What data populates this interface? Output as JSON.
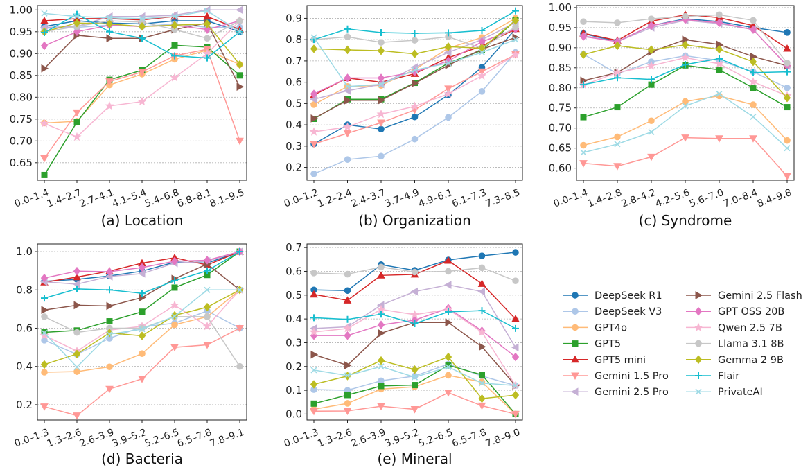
{
  "colors": {
    "DeepSeek R1": "#1f77b4",
    "DeepSeek V3": "#aec7e8",
    "GPT4o": "#ffbb78",
    "GPT5": "#2ca02c",
    "GPT5 mini": "#d62728",
    "Gemini 1.5 Pro": "#ff9896",
    "Gemini 2.5 Pro": "#c5b0d5",
    "Gemini 2.5 Flash": "#8c564b",
    "GPT OSS 20B": "#e377c2",
    "Qwen 2.5 7B": "#f7b6d2",
    "Llama 3.1 8B": "#c7c7c7",
    "Gemma 2 9B": "#bcbd22",
    "Flair": "#17becf",
    "PrivateAI": "#9edae5"
  },
  "markers": {
    "DeepSeek R1": "circle",
    "DeepSeek V3": "circle",
    "GPT4o": "circle",
    "GPT5": "square",
    "GPT5 mini": "triangle-up",
    "Gemini 1.5 Pro": "triangle-down",
    "Gemini 2.5 Pro": "triangle-left",
    "Gemini 2.5 Flash": "triangle-right",
    "GPT OSS 20B": "diamond",
    "Qwen 2.5 7B": "star",
    "Llama 3.1 8B": "circle",
    "Gemma 2 9B": "diamond",
    "Flair": "plus",
    "PrivateAI": "x"
  },
  "legend": {
    "column1": [
      "DeepSeek R1",
      "DeepSeek V3",
      "GPT4o",
      "GPT5",
      "GPT5 mini",
      "Gemini 1.5 Pro",
      "Gemini 2.5 Pro"
    ],
    "column2": [
      "Gemini 2.5 Flash",
      "GPT OSS 20B",
      "Qwen 2.5 7B",
      "Llama 3.1 8B",
      "Gemma 2 9B",
      "Flair",
      "PrivateAI"
    ]
  },
  "chart_data": [
    {
      "type": "line",
      "caption": "(a) Location",
      "categories": [
        "0.0–1.4",
        "1.4–2.7",
        "2.7–4.1",
        "4.1–5.4",
        "5.4–6.8",
        "6.8–8.1",
        "8.1–9.5"
      ],
      "yticks": [
        "0.65",
        "0.70",
        "0.75",
        "0.80",
        "0.85",
        "0.90",
        "0.95",
        "1.00"
      ],
      "ylim": [
        0.61,
        1.01
      ],
      "grid": "horizontal dotted",
      "series": [
        {
          "name": "DeepSeek R1",
          "values": [
            0.962,
            0.975,
            0.97,
            0.968,
            0.975,
            0.975,
            0.95
          ]
        },
        {
          "name": "DeepSeek V3",
          "values": [
            0.958,
            0.96,
            0.965,
            0.962,
            0.968,
            0.96,
            0.96
          ]
        },
        {
          "name": "GPT4o",
          "values": [
            0.741,
            0.745,
            0.828,
            0.853,
            0.887,
            0.908,
            0.875
          ]
        },
        {
          "name": "GPT5",
          "values": [
            0.622,
            0.743,
            0.84,
            0.862,
            0.919,
            0.915,
            0.85
          ]
        },
        {
          "name": "GPT5 mini",
          "values": [
            0.975,
            0.98,
            0.98,
            0.977,
            0.985,
            0.985,
            0.955
          ]
        },
        {
          "name": "Gemini 1.5 Pro",
          "values": [
            0.66,
            0.765,
            0.836,
            0.858,
            0.895,
            0.91,
            0.7
          ]
        },
        {
          "name": "Gemini 2.5 Pro",
          "values": [
            0.96,
            0.962,
            0.985,
            0.985,
            0.988,
            1.0,
            1.0
          ]
        },
        {
          "name": "Gemini 2.5 Flash",
          "values": [
            0.866,
            0.942,
            0.935,
            0.935,
            0.955,
            0.97,
            0.824
          ]
        },
        {
          "name": "GPT OSS 20B",
          "values": [
            0.918,
            0.95,
            0.965,
            0.962,
            0.965,
            0.955,
            0.975
          ]
        },
        {
          "name": "Qwen 2.5 7B",
          "values": [
            0.74,
            0.709,
            0.78,
            0.79,
            0.845,
            0.9,
            0.975
          ]
        },
        {
          "name": "Llama 3.1 8B",
          "values": [
            0.95,
            0.962,
            0.975,
            0.972,
            0.955,
            0.935,
            0.975
          ]
        },
        {
          "name": "Gemma 2 9B",
          "values": [
            0.95,
            0.97,
            0.968,
            0.962,
            0.965,
            0.968,
            0.875
          ]
        },
        {
          "name": "Flair",
          "values": [
            0.948,
            0.99,
            0.95,
            0.935,
            0.895,
            0.89,
            0.95
          ]
        },
        {
          "name": "PrivateAI",
          "values": [
            0.992,
            0.985,
            0.982,
            0.98,
            0.985,
            0.998,
            0.95
          ]
        }
      ]
    },
    {
      "type": "line",
      "caption": "(b) Organization",
      "categories": [
        "0.0–1.2",
        "1.2–2.4",
        "2.4–3.7",
        "3.7–4.9",
        "4.9–6.1",
        "6.1–7.3",
        "7.3–8.5"
      ],
      "yticks": [
        "0.2",
        "0.3",
        "0.4",
        "0.5",
        "0.6",
        "0.7",
        "0.8",
        "0.9"
      ],
      "ylim": [
        0.14,
        0.96
      ],
      "grid": "horizontal dotted",
      "series": [
        {
          "name": "DeepSeek R1",
          "values": [
            0.31,
            0.4,
            0.38,
            0.437,
            0.54,
            0.67,
            0.85
          ]
        },
        {
          "name": "DeepSeek V3",
          "values": [
            0.17,
            0.237,
            0.253,
            0.333,
            0.435,
            0.557,
            0.74
          ]
        },
        {
          "name": "GPT4o",
          "values": [
            0.495,
            0.58,
            0.585,
            0.66,
            0.76,
            0.81,
            0.9
          ]
        },
        {
          "name": "GPT5",
          "values": [
            0.428,
            0.52,
            0.52,
            0.597,
            0.69,
            0.75,
            0.89
          ]
        },
        {
          "name": "GPT5 mini",
          "values": [
            0.54,
            0.62,
            0.6,
            0.64,
            0.715,
            0.77,
            0.85
          ]
        },
        {
          "name": "Gemini 1.5 Pro",
          "values": [
            0.31,
            0.36,
            0.41,
            0.47,
            0.57,
            0.65,
            0.73
          ]
        },
        {
          "name": "Gemini 2.5 Pro",
          "values": [
            0.52,
            0.56,
            0.59,
            0.67,
            0.74,
            0.8,
            0.88
          ]
        },
        {
          "name": "Gemini 2.5 Flash",
          "values": [
            0.43,
            0.515,
            0.515,
            0.595,
            0.68,
            0.755,
            0.81
          ]
        },
        {
          "name": "GPT OSS 20B",
          "values": [
            0.545,
            0.62,
            0.62,
            0.648,
            0.7,
            0.79,
            0.85
          ]
        },
        {
          "name": "Qwen 2.5 7B",
          "values": [
            0.367,
            0.39,
            0.45,
            0.487,
            0.545,
            0.63,
            0.73
          ]
        },
        {
          "name": "Llama 3.1 8B",
          "values": [
            0.8,
            0.813,
            0.787,
            0.797,
            0.813,
            0.76,
            0.86
          ]
        },
        {
          "name": "Gemma 2 9B",
          "values": [
            0.757,
            0.752,
            0.748,
            0.733,
            0.767,
            0.76,
            0.89
          ]
        },
        {
          "name": "Flair",
          "values": [
            0.8,
            0.85,
            0.833,
            0.83,
            0.832,
            0.843,
            0.935
          ]
        },
        {
          "name": "PrivateAI",
          "values": [
            0.81,
            0.58,
            0.59,
            0.657,
            0.69,
            0.74,
            0.8
          ]
        }
      ]
    },
    {
      "type": "line",
      "caption": "(c) Syndrome",
      "categories": [
        "0.0–1.4",
        "1.4–2.8",
        "2.8–4.2",
        "4.2–5.6",
        "5.6–7.0",
        "7.0–8.4",
        "8.4–9.8"
      ],
      "yticks": [
        "0.60",
        "0.65",
        "0.70",
        "0.75",
        "0.80",
        "0.85",
        "0.90",
        "0.95",
        "1.00"
      ],
      "ylim": [
        0.57,
        1.005
      ],
      "grid": "horizontal dotted",
      "series": [
        {
          "name": "DeepSeek R1",
          "values": [
            0.935,
            0.915,
            0.955,
            0.972,
            0.965,
            0.95,
            0.938
          ]
        },
        {
          "name": "DeepSeek V3",
          "values": [
            0.884,
            0.835,
            0.865,
            0.88,
            0.868,
            0.84,
            0.8
          ]
        },
        {
          "name": "GPT4o",
          "values": [
            0.657,
            0.678,
            0.718,
            0.766,
            0.78,
            0.758,
            0.669
          ]
        },
        {
          "name": "GPT5",
          "values": [
            0.727,
            0.752,
            0.808,
            0.856,
            0.845,
            0.8,
            0.752
          ]
        },
        {
          "name": "GPT5 mini",
          "values": [
            0.936,
            0.918,
            0.966,
            0.982,
            0.975,
            0.955,
            0.898
          ]
        },
        {
          "name": "Gemini 1.5 Pro",
          "values": [
            0.612,
            0.605,
            0.628,
            0.676,
            0.674,
            0.674,
            0.58
          ]
        },
        {
          "name": "Gemini 2.5 Pro",
          "values": [
            0.93,
            0.915,
            0.95,
            0.968,
            0.96,
            0.945,
            0.855
          ]
        },
        {
          "name": "Gemini 2.5 Flash",
          "values": [
            0.818,
            0.838,
            0.89,
            0.92,
            0.908,
            0.878,
            0.855
          ]
        },
        {
          "name": "GPT OSS 20B",
          "values": [
            0.928,
            0.915,
            0.955,
            0.97,
            0.962,
            0.945,
            0.855
          ]
        },
        {
          "name": "Qwen 2.5 7B",
          "values": [
            0.807,
            0.838,
            0.855,
            0.875,
            0.86,
            0.815,
            0.78
          ]
        },
        {
          "name": "Llama 3.1 8B",
          "values": [
            0.965,
            0.962,
            0.972,
            0.978,
            0.982,
            0.968,
            0.862
          ]
        },
        {
          "name": "Gemma 2 9B",
          "values": [
            0.883,
            0.905,
            0.895,
            0.907,
            0.896,
            0.865,
            0.775
          ]
        },
        {
          "name": "Flair",
          "values": [
            0.808,
            0.825,
            0.821,
            0.858,
            0.873,
            0.838,
            0.84
          ]
        },
        {
          "name": "PrivateAI",
          "values": [
            0.639,
            0.66,
            0.69,
            0.755,
            0.785,
            0.728,
            0.65
          ]
        }
      ]
    },
    {
      "type": "line",
      "caption": "(d) Bacteria",
      "categories": [
        "0.0–1.3",
        "1.3–2.6",
        "2.6–3.9",
        "3.9–5.2",
        "5.2–6.5",
        "6.5–7.8",
        "7.8–9.1"
      ],
      "yticks": [
        "0.2",
        "0.4",
        "0.6",
        "0.8",
        "1.0"
      ],
      "ylim": [
        0.12,
        1.04
      ],
      "grid": "horizontal dotted",
      "series": [
        {
          "name": "DeepSeek R1",
          "values": [
            0.845,
            0.855,
            0.873,
            0.898,
            0.945,
            0.94,
            1.0
          ]
        },
        {
          "name": "DeepSeek V3",
          "values": [
            0.537,
            0.463,
            0.547,
            0.607,
            0.626,
            0.69,
            0.6
          ]
        },
        {
          "name": "GPT4o",
          "values": [
            0.37,
            0.373,
            0.398,
            0.467,
            0.618,
            0.66,
            0.8
          ]
        },
        {
          "name": "GPT5",
          "values": [
            0.578,
            0.588,
            0.636,
            0.686,
            0.812,
            0.878,
            1.0
          ]
        },
        {
          "name": "GPT5 mini",
          "values": [
            0.84,
            0.867,
            0.898,
            0.94,
            0.968,
            0.93,
            1.0
          ]
        },
        {
          "name": "Gemini 1.5 Pro",
          "values": [
            0.19,
            0.143,
            0.282,
            0.335,
            0.5,
            0.513,
            0.6
          ]
        },
        {
          "name": "Gemini 2.5 Pro",
          "values": [
            0.842,
            0.83,
            0.87,
            0.885,
            0.94,
            0.95,
            1.0
          ]
        },
        {
          "name": "Gemini 2.5 Flash",
          "values": [
            0.695,
            0.72,
            0.716,
            0.76,
            0.858,
            0.935,
            0.8
          ]
        },
        {
          "name": "GPT OSS 20B",
          "values": [
            0.862,
            0.898,
            0.895,
            0.917,
            0.95,
            0.955,
            1.0
          ]
        },
        {
          "name": "Qwen 2.5 7B",
          "values": [
            0.562,
            0.48,
            0.59,
            0.61,
            0.72,
            0.61,
            0.8
          ]
        },
        {
          "name": "Llama 3.1 8B",
          "values": [
            0.66,
            0.578,
            0.6,
            0.6,
            0.66,
            0.66,
            0.4
          ]
        },
        {
          "name": "Gemma 2 9B",
          "values": [
            0.41,
            0.465,
            0.575,
            0.56,
            0.667,
            0.71,
            0.8
          ]
        },
        {
          "name": "Flair",
          "values": [
            0.757,
            0.805,
            0.8,
            0.782,
            0.848,
            0.9,
            1.0
          ]
        },
        {
          "name": "PrivateAI",
          "values": [
            0.575,
            0.397,
            0.568,
            0.595,
            0.662,
            0.8,
            0.8
          ]
        }
      ]
    },
    {
      "type": "line",
      "caption": "(e) Mineral",
      "categories": [
        "0.0–1.3",
        "1.3–2.6",
        "2.6–3.9",
        "3.9–5.2",
        "5.2–6.5",
        "6.5–7.8",
        "7.8–9.0"
      ],
      "yticks": [
        "0.0",
        "0.1",
        "0.2",
        "0.3",
        "0.4",
        "0.5",
        "0.6",
        "0.7"
      ],
      "ylim": [
        -0.025,
        0.715
      ],
      "grid": "horizontal dotted",
      "series": [
        {
          "name": "DeepSeek R1",
          "values": [
            0.522,
            0.519,
            0.628,
            0.604,
            0.648,
            0.665,
            0.68
          ]
        },
        {
          "name": "DeepSeek V3",
          "values": [
            0.103,
            0.1,
            0.14,
            0.16,
            0.21,
            0.16,
            0.12
          ]
        },
        {
          "name": "GPT4o",
          "values": [
            0.02,
            0.045,
            0.105,
            0.115,
            0.163,
            0.135,
            0.0
          ]
        },
        {
          "name": "GPT5",
          "values": [
            0.044,
            0.08,
            0.118,
            0.122,
            0.205,
            0.165,
            0.0
          ]
        },
        {
          "name": "GPT5 mini",
          "values": [
            0.503,
            0.478,
            0.583,
            0.587,
            0.645,
            0.548,
            0.4
          ]
        },
        {
          "name": "Gemini 1.5 Pro",
          "values": [
            0.012,
            0.013,
            0.033,
            0.02,
            0.09,
            0.035,
            0.0
          ]
        },
        {
          "name": "Gemini 2.5 Pro",
          "values": [
            0.36,
            0.367,
            0.458,
            0.515,
            0.543,
            0.515,
            0.28
          ]
        },
        {
          "name": "Gemini 2.5 Flash",
          "values": [
            0.25,
            0.205,
            0.34,
            0.385,
            0.385,
            0.283,
            0.12
          ]
        },
        {
          "name": "GPT OSS 20B",
          "values": [
            0.33,
            0.33,
            0.375,
            0.395,
            0.445,
            0.35,
            0.24
          ]
        },
        {
          "name": "Qwen 2.5 7B",
          "values": [
            0.345,
            0.36,
            0.44,
            0.418,
            0.44,
            0.345,
            0.12
          ]
        },
        {
          "name": "Llama 3.1 8B",
          "values": [
            0.593,
            0.588,
            0.618,
            0.597,
            0.6,
            0.615,
            0.56
          ]
        },
        {
          "name": "Gemma 2 9B",
          "values": [
            0.125,
            0.16,
            0.225,
            0.187,
            0.24,
            0.065,
            0.08
          ]
        },
        {
          "name": "Flair",
          "values": [
            0.405,
            0.398,
            0.42,
            0.38,
            0.43,
            0.435,
            0.36
          ]
        },
        {
          "name": "PrivateAI",
          "values": [
            0.185,
            0.162,
            0.2,
            0.155,
            0.198,
            0.13,
            0.12
          ]
        }
      ]
    }
  ]
}
